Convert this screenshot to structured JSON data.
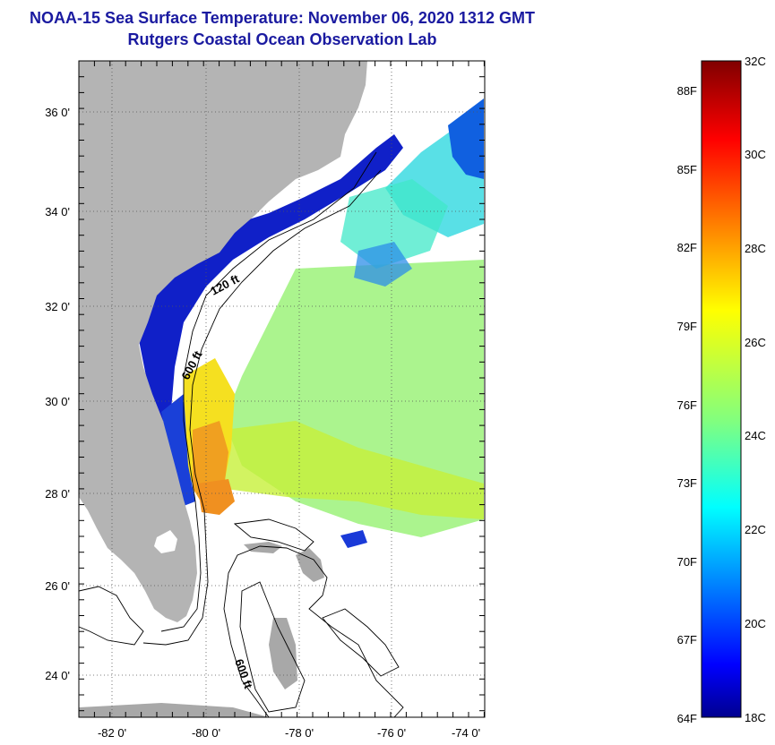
{
  "title": "NOAA-15 Sea Surface Temperature:  November 06, 2020 1312 GMT",
  "subtitle": "Rutgers Coastal Ocean Observation Lab",
  "map": {
    "lon_ticks": [
      "-82 0'",
      "-80 0'",
      "-78 0'",
      "-76 0'",
      "-74 0'"
    ],
    "lat_ticks": [
      "36 0'",
      "34 0'",
      "32 0'",
      "30 0'",
      "28 0'",
      "26 0'",
      "24 0'"
    ],
    "contour_labels": [
      "120 ft",
      "600 ft",
      "600 ft"
    ],
    "land_color": "#b4b4b4",
    "grid": "dotted"
  },
  "colorbar": {
    "fahrenheit": [
      "88F",
      "85F",
      "82F",
      "79F",
      "76F",
      "73F",
      "70F",
      "67F",
      "64F"
    ],
    "celsius": [
      "32C",
      "30C",
      "28C",
      "26C",
      "24C",
      "22C",
      "20C",
      "18C"
    ],
    "stops": [
      "#800000",
      "#ff0000",
      "#ff8000",
      "#ffff00",
      "#80ff80",
      "#00ffff",
      "#0080ff",
      "#0000ff",
      "#00008f"
    ]
  }
}
